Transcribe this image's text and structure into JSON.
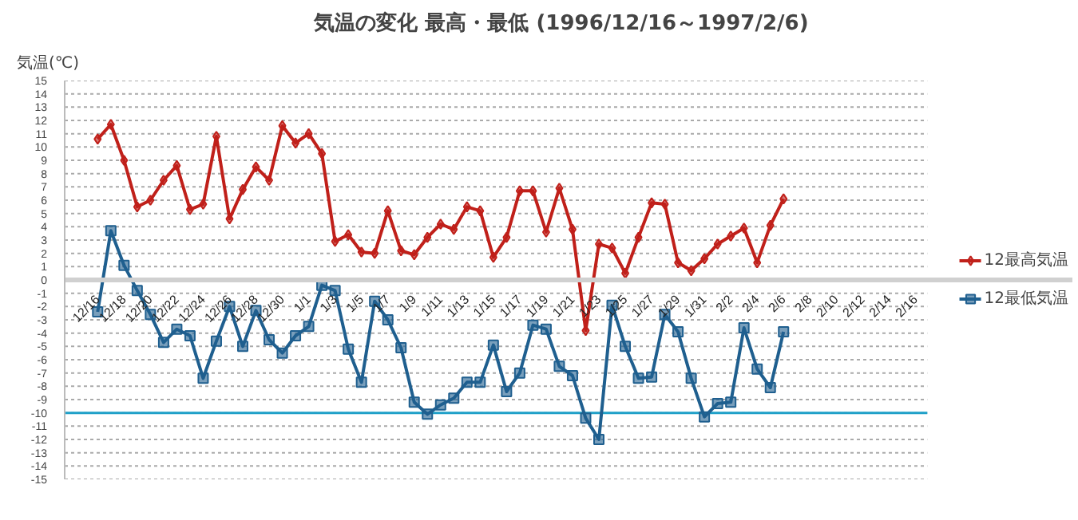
{
  "chart_data": {
    "type": "line",
    "title": "気温の変化  最高・最低  (1996/12/16～1997/2/6)",
    "ylabel": "気温(℃)",
    "categories": [
      "12/16",
      null,
      "12/18",
      null,
      "12/20",
      null,
      "12/22",
      null,
      "12/24",
      null,
      "12/26",
      null,
      "12/28",
      null,
      "12/30",
      null,
      "1/1",
      null,
      "1/3",
      null,
      "1/5",
      null,
      "1/7",
      null,
      "1/9",
      null,
      "1/11",
      null,
      "1/13",
      null,
      "1/15",
      null,
      "1/17",
      null,
      "1/19",
      null,
      "1/21",
      null,
      "1/23",
      null,
      "1/25",
      null,
      "1/27",
      null,
      "1/29",
      null,
      "1/31",
      null,
      "2/2",
      null,
      "2/4",
      null,
      "2/6",
      null,
      "2/8",
      null,
      "2/10",
      null,
      "2/12",
      null,
      "2/14",
      null,
      "2/16"
    ],
    "series": [
      {
        "name": "12最高気温",
        "color": "#c0201a",
        "marker": "diamond",
        "values": [
          10.6,
          11.7,
          9.0,
          5.5,
          6.0,
          7.5,
          8.6,
          5.3,
          5.7,
          10.8,
          4.6,
          6.8,
          8.5,
          7.5,
          11.6,
          10.3,
          11.0,
          9.5,
          2.9,
          3.4,
          2.1,
          2.0,
          5.2,
          2.2,
          1.9,
          3.2,
          4.2,
          3.8,
          5.5,
          5.2,
          1.7,
          3.2,
          6.7,
          6.7,
          3.6,
          6.9,
          3.8,
          -3.8,
          2.7,
          2.4,
          0.5,
          3.2,
          5.8,
          5.7,
          1.3,
          0.7,
          1.6,
          2.7,
          3.3,
          3.9,
          1.3,
          4.1,
          6.1,
          null,
          null,
          null,
          null,
          null,
          null,
          null,
          null,
          null,
          null
        ]
      },
      {
        "name": "12最低気温",
        "color": "#1f5f8f",
        "marker": "square",
        "values": [
          -2.4,
          3.7,
          1.1,
          -0.8,
          -2.6,
          -4.7,
          -3.7,
          -4.2,
          -7.4,
          -4.6,
          -2.0,
          -5.0,
          -2.3,
          -4.5,
          -5.5,
          -4.2,
          -3.5,
          -0.4,
          -0.8,
          -5.2,
          -7.7,
          -1.6,
          -3.0,
          -5.1,
          -9.2,
          -10.1,
          -9.4,
          -8.9,
          -7.7,
          -7.7,
          -4.9,
          -8.4,
          -7.0,
          -3.4,
          -3.7,
          -6.5,
          -7.2,
          -10.4,
          -12.0,
          -1.9,
          -5.0,
          -7.4,
          -7.3,
          -2.6,
          -3.9,
          -7.4,
          -10.3,
          -9.3,
          -9.2,
          -3.6,
          -6.7,
          -8.1,
          -3.9,
          null,
          null,
          null,
          null,
          null,
          null,
          null,
          null,
          null,
          null
        ]
      }
    ],
    "ylim": [
      -15,
      15
    ],
    "yticks": [
      -15,
      -14,
      -13,
      -12,
      -11,
      -10,
      -9,
      -8,
      -7,
      -6,
      -5,
      -4,
      -3,
      -2,
      -1,
      0,
      1,
      2,
      3,
      4,
      5,
      6,
      7,
      8,
      9,
      10,
      11,
      12,
      13,
      14,
      15
    ],
    "ref_lines": [
      {
        "axis": "y",
        "value": -10,
        "label": null,
        "color": "#1fa0c8"
      }
    ],
    "grid": "y",
    "legend": "right"
  }
}
